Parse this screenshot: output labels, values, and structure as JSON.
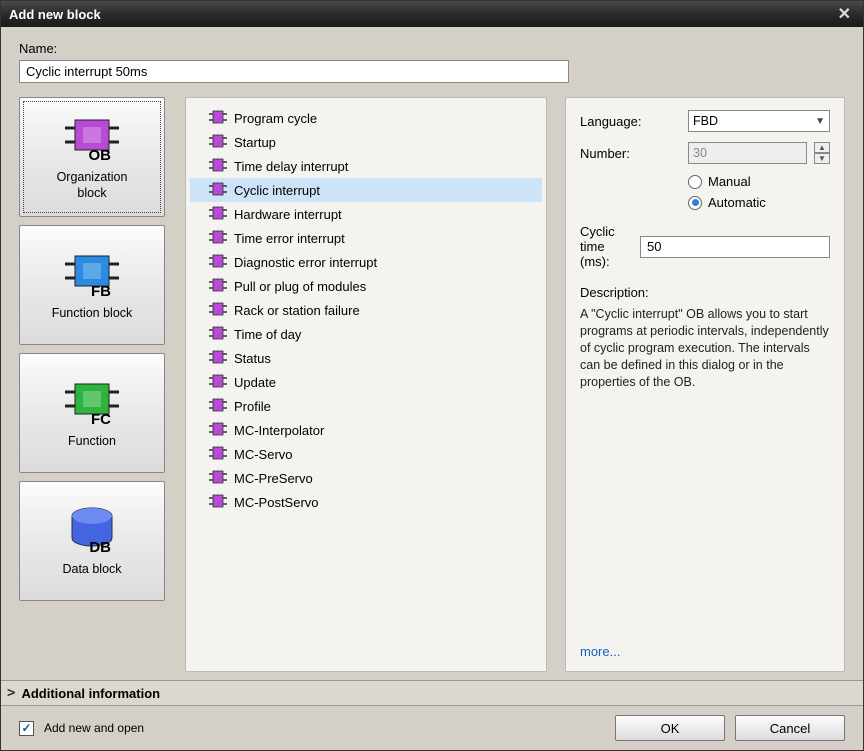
{
  "dialog": {
    "title": "Add new block"
  },
  "name": {
    "label": "Name:",
    "value": "Cyclic interrupt 50ms"
  },
  "blockTypes": [
    {
      "id": "ob",
      "label": "Organization\nblock",
      "short": "OB",
      "color": "#b84ad6",
      "selected": true
    },
    {
      "id": "fb",
      "label": "Function block",
      "short": "FB",
      "color": "#2a8be0",
      "selected": false
    },
    {
      "id": "fc",
      "label": "Function",
      "short": "FC",
      "color": "#2db33e",
      "selected": false
    },
    {
      "id": "db",
      "label": "Data block",
      "short": "DB",
      "color": "#3b5fe0",
      "selected": false,
      "cyl": true
    }
  ],
  "obList": [
    {
      "label": "Program cycle"
    },
    {
      "label": "Startup"
    },
    {
      "label": "Time delay interrupt"
    },
    {
      "label": "Cyclic interrupt",
      "selected": true
    },
    {
      "label": "Hardware interrupt"
    },
    {
      "label": "Time error interrupt"
    },
    {
      "label": "Diagnostic error interrupt"
    },
    {
      "label": "Pull or plug of modules"
    },
    {
      "label": "Rack or station failure"
    },
    {
      "label": "Time of day"
    },
    {
      "label": "Status"
    },
    {
      "label": "Update"
    },
    {
      "label": "Profile"
    },
    {
      "label": "MC-Interpolator"
    },
    {
      "label": "MC-Servo"
    },
    {
      "label": "MC-PreServo"
    },
    {
      "label": "MC-PostServo"
    }
  ],
  "props": {
    "languageLabel": "Language:",
    "languageValue": "FBD",
    "numberLabel": "Number:",
    "numberValue": "30",
    "manualLabel": "Manual",
    "automaticLabel": "Automatic",
    "numberMode": "automatic",
    "cyclicLabel": "Cyclic time (ms):",
    "cyclicValue": "50",
    "descLabel": "Description:",
    "descBody": "A \"Cyclic interrupt\" OB allows you to start programs at periodic intervals, independently of cyclic program execution. The intervals can be defined in this dialog or in the properties of the OB.",
    "moreLabel": "more..."
  },
  "additional": {
    "label": "Additional  information"
  },
  "footer": {
    "addOpenLabel": "Add new and open",
    "addOpenChecked": true,
    "okLabel": "OK",
    "cancelLabel": "Cancel"
  },
  "iconColor": "#b84ad6"
}
